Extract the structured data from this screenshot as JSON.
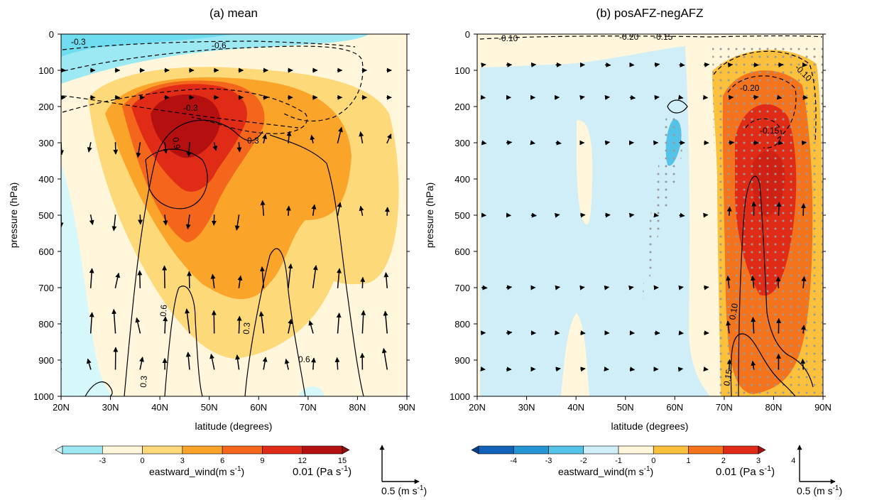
{
  "chart_data": [
    {
      "type": "contour",
      "title": "(a) mean",
      "xlabel": "latitude (degrees)",
      "ylabel": "pressure (hPa)",
      "x_ticks": [
        "20N",
        "30N",
        "40N",
        "50N",
        "60N",
        "70N",
        "80N",
        "90N"
      ],
      "y_ticks": [
        "0",
        "100",
        "200",
        "300",
        "400",
        "500",
        "600",
        "700",
        "800",
        "900",
        "1000"
      ],
      "xlim": [
        20,
        90
      ],
      "ylim": [
        0,
        1000
      ],
      "y_inverted": true,
      "shaded_variable": {
        "label": "eastward_wind(m s",
        "unit_exp": "-1",
        "unit_close": ")",
        "levels": [
          -3,
          0,
          3,
          6,
          9,
          12,
          15
        ],
        "level_labels": [
          "-3",
          "0",
          "3",
          "6",
          "9",
          "12",
          "15"
        ],
        "colors": [
          "#d6f8fb",
          "#9ce8f3",
          "#fff6dc",
          "#fed979",
          "#fba42a",
          "#f3661c",
          "#e02b17",
          "#b3100f",
          "#8c0f0f"
        ],
        "jet_core": {
          "lat": 43,
          "pressure": 250,
          "max_value": 15
        }
      },
      "contour_variable": {
        "style": "solid positive, dashed negative",
        "labels": [
          "-0.3",
          "-0.6",
          "-0.3",
          "0.3",
          "0.9",
          "0.6",
          "0.3",
          "0.6",
          "0.3"
        ]
      },
      "vectors": {
        "reference_vertical": "0.01 (Pa s",
        "reference_vertical_exp": "-1",
        "reference_vertical_close": ")",
        "reference_horizontal": "0.5 (m s",
        "reference_horizontal_exp": "-1",
        "reference_horizontal_close": ")",
        "rows_hPa": [
          100,
          175,
          300,
          500,
          700,
          825,
          925
        ],
        "cols_lat": [
          20,
          26,
          31,
          36,
          41,
          46,
          51,
          56,
          61,
          66,
          71,
          76,
          81,
          86
        ]
      }
    },
    {
      "type": "contour",
      "title": "(b) posAFZ-negAFZ",
      "xlabel": "latitude (degrees)",
      "ylabel": "pressure (hPa)",
      "x_ticks": [
        "20N",
        "30N",
        "40N",
        "50N",
        "60N",
        "70N",
        "80N",
        "90N"
      ],
      "y_ticks": [
        "0",
        "100",
        "200",
        "300",
        "400",
        "500",
        "600",
        "700",
        "800",
        "900",
        "1000"
      ],
      "xlim": [
        20,
        90
      ],
      "ylim": [
        0,
        1000
      ],
      "y_inverted": true,
      "shaded_variable": {
        "label": "eastward_wind(m s",
        "unit_exp": "-1",
        "unit_close": ")",
        "levels": [
          -4,
          -3,
          -2,
          -1,
          0,
          1,
          2,
          3,
          4
        ],
        "level_labels": [
          "-4",
          "-3",
          "-2",
          "-1",
          "0",
          "1",
          "2",
          "3",
          "4"
        ],
        "colors": [
          "#0a3f8e",
          "#1162b8",
          "#2595d3",
          "#55c2e8",
          "#cfeef8",
          "#fff6dc",
          "#fbc13c",
          "#f4741e",
          "#e02b17",
          "#a80e0e"
        ],
        "core": {
          "lat": 77,
          "pressure": 400,
          "max_value": 4
        },
        "significance": "stippled"
      },
      "contour_variable": {
        "style": "solid positive, dashed negative",
        "labels": [
          "-0.10",
          "-0.20",
          "-0.15",
          "-0.10",
          "-0.20",
          "-0.15",
          "0.10",
          "0.15"
        ]
      },
      "vectors": {
        "reference_vertical": "0.01 (Pa s",
        "reference_vertical_exp": "-1",
        "reference_vertical_close": ")",
        "reference_horizontal": "0.5 (m s",
        "reference_horizontal_exp": "-1",
        "reference_horizontal_close": ")",
        "rows_hPa": [
          85,
          175,
          300,
          500,
          700,
          825,
          925
        ],
        "cols_lat": [
          21,
          26,
          31,
          36,
          41,
          46,
          51,
          56,
          61,
          66,
          71,
          76,
          81,
          86
        ]
      }
    }
  ]
}
